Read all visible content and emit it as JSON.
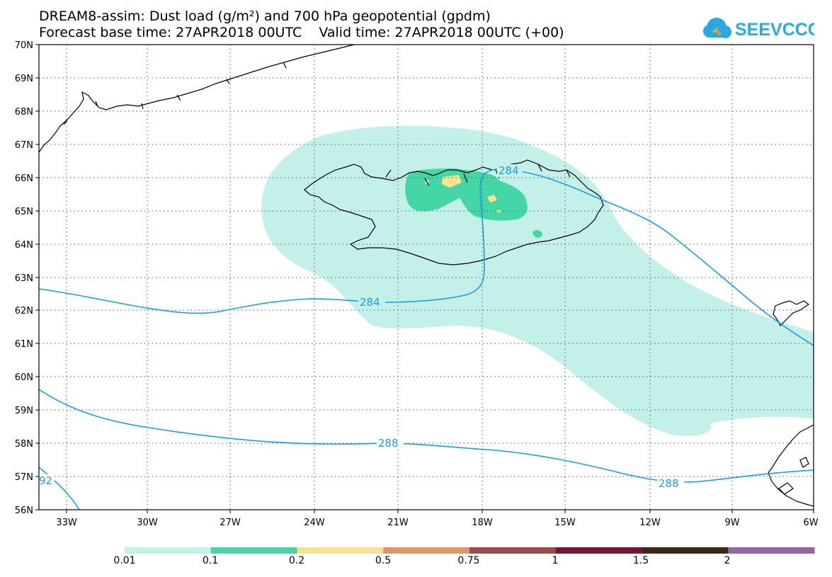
{
  "title_line1": "DREAM8-assim: Dust load (g/m²) and 700 hPa geopotential (gpdm)",
  "title_line2": "Forecast base time: 27APR2018 00UTC    Valid time: 27APR2018 00UTC (+00)",
  "logo_text": "SEEVCCC",
  "latitude_labels": [
    "70N",
    "69N",
    "68N",
    "67N",
    "66N",
    "65N",
    "64N",
    "63N",
    "62N",
    "61N",
    "60N",
    "59N",
    "58N",
    "57N",
    "56N"
  ],
  "longitude_labels": [
    "33W",
    "30W",
    "27W",
    "24W",
    "21W",
    "18W",
    "15W",
    "12W",
    "9W",
    "6W"
  ],
  "contour_labels": {
    "c284_north": "284",
    "c284_south": "284",
    "c288_mid": "288",
    "c288_east": "288",
    "c292": "92"
  },
  "legend": {
    "labels": [
      "0.01",
      "0.1",
      "0.2",
      "0.5",
      "0.75",
      "1",
      "1.5",
      "2"
    ],
    "colors": [
      "#c4f0ea",
      "#44d6a6",
      "#f6e38a",
      "#e89068",
      "#a3484c",
      "#7d1236",
      "#3a2a18",
      "#9467a2"
    ]
  },
  "colors": {
    "contour": "#1f9bdb",
    "dust_low": "#c4f0ea",
    "dust_mid": "#44d6a6",
    "dust_high": "#f6e38a"
  }
}
